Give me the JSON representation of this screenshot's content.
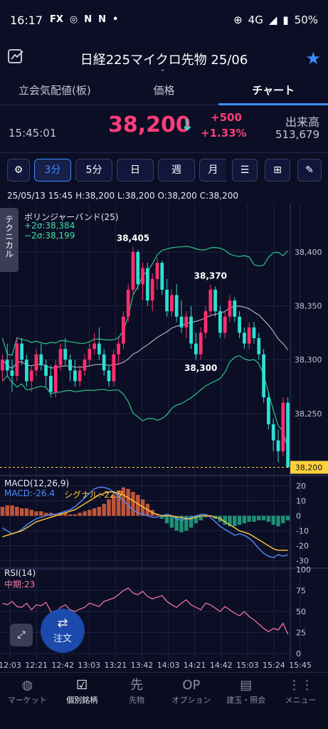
{
  "status_bar": {
    "time": "16:17",
    "icons": [
      "FX",
      "instagram-icon",
      "N",
      "N",
      "•"
    ],
    "network": "4G",
    "battery": "50%"
  },
  "header": {
    "title": "日経225マイクロ先物 25/06",
    "chevron": "⌄"
  },
  "tabs": [
    "立会気配値(板)",
    "価格",
    "チャート"
  ],
  "quote": {
    "time": "15:45:01",
    "price": "38,200",
    "change": "+500",
    "change_pct": "+1.33%",
    "volume_label": "出来高",
    "volume": "513,679"
  },
  "toolbar": {
    "periods": [
      "3分",
      "5分",
      "日",
      "週",
      "月"
    ],
    "selected": "3分"
  },
  "ohlc": "25/05/13 15:45  H:38,200  L:38,200  O:38,200  C:38,200",
  "bollinger": {
    "title": "ボリンジャーバンド(25)",
    "upper": "+2σ:38,384",
    "lower": "−2σ:38,199"
  },
  "tech_tab": "テクニカル",
  "annotations": {
    "high1": "38,405",
    "high2": "38,370",
    "low1": "38,300"
  },
  "price_axis": [
    "38,400",
    "38,350",
    "38,300",
    "38,250"
  ],
  "last_price_tag": "38,200",
  "macd": {
    "title": "MACD(12,26,9)",
    "macd_label": "MACD:-26.4",
    "signal_label": "シグナル:-22.7",
    "axis": [
      "20",
      "10",
      "0",
      "-10",
      "-20",
      "-30"
    ]
  },
  "rsi": {
    "title": "RSI(14)",
    "mid_label": "中期:23",
    "axis": [
      "100",
      "75",
      "50",
      "25",
      "0"
    ]
  },
  "time_axis": [
    "12:03",
    "12:21",
    "12:42",
    "13:03",
    "13:21",
    "13:42",
    "14:03",
    "14:21",
    "14:42",
    "15:03",
    "15:24",
    "15:45"
  ],
  "fab_label": "注文",
  "bottom_nav": [
    {
      "label": "マーケット",
      "icon": "globe-icon"
    },
    {
      "label": "個別銘柄",
      "icon": "checkbox-icon"
    },
    {
      "label": "先物",
      "icon": "futures-icon"
    },
    {
      "label": "オプション",
      "icon": "options-icon"
    },
    {
      "label": "建玉・照会",
      "icon": "document-icon"
    },
    {
      "label": "メニュー",
      "icon": "grid-icon"
    }
  ],
  "chart_data": {
    "type": "candlestick",
    "price_range": [
      38195,
      38445
    ],
    "macd_range": [
      -34,
      25
    ],
    "rsi_range": [
      0,
      100
    ],
    "candles": [
      [
        38290,
        38305,
        38280,
        38300
      ],
      [
        38300,
        38315,
        38285,
        38290
      ],
      [
        38290,
        38300,
        38270,
        38285
      ],
      [
        38285,
        38320,
        38280,
        38315
      ],
      [
        38315,
        38320,
        38295,
        38300
      ],
      [
        38300,
        38305,
        38275,
        38280
      ],
      [
        38280,
        38295,
        38270,
        38290
      ],
      [
        38290,
        38310,
        38285,
        38305
      ],
      [
        38305,
        38315,
        38290,
        38295
      ],
      [
        38295,
        38300,
        38275,
        38285
      ],
      [
        38285,
        38295,
        38265,
        38270
      ],
      [
        38270,
        38300,
        38265,
        38295
      ],
      [
        38295,
        38315,
        38290,
        38310
      ],
      [
        38310,
        38320,
        38295,
        38300
      ],
      [
        38300,
        38305,
        38280,
        38290
      ],
      [
        38290,
        38300,
        38275,
        38280
      ],
      [
        38280,
        38295,
        38275,
        38290
      ],
      [
        38290,
        38305,
        38285,
        38300
      ],
      [
        38300,
        38315,
        38295,
        38310
      ],
      [
        38310,
        38325,
        38305,
        38315
      ],
      [
        38315,
        38330,
        38300,
        38305
      ],
      [
        38305,
        38310,
        38285,
        38290
      ],
      [
        38290,
        38295,
        38275,
        38280
      ],
      [
        38280,
        38310,
        38275,
        38305
      ],
      [
        38305,
        38320,
        38295,
        38315
      ],
      [
        38315,
        38345,
        38310,
        38340
      ],
      [
        38340,
        38370,
        38335,
        38365
      ],
      [
        38365,
        38405,
        38360,
        38400
      ],
      [
        38400,
        38402,
        38365,
        38370
      ],
      [
        38370,
        38390,
        38355,
        38385
      ],
      [
        38385,
        38390,
        38350,
        38355
      ],
      [
        38355,
        38380,
        38345,
        38375
      ],
      [
        38375,
        38395,
        38365,
        38390
      ],
      [
        38390,
        38392,
        38360,
        38365
      ],
      [
        38365,
        38375,
        38340,
        38345
      ],
      [
        38345,
        38365,
        38340,
        38360
      ],
      [
        38360,
        38370,
        38335,
        38340
      ],
      [
        38340,
        38355,
        38325,
        38330
      ],
      [
        38330,
        38345,
        38320,
        38340
      ],
      [
        38340,
        38350,
        38310,
        38315
      ],
      [
        38315,
        38325,
        38300,
        38305
      ],
      [
        38305,
        38330,
        38300,
        38325
      ],
      [
        38325,
        38350,
        38320,
        38345
      ],
      [
        38345,
        38370,
        38340,
        38365
      ],
      [
        38365,
        38368,
        38340,
        38345
      ],
      [
        38345,
        38350,
        38320,
        38325
      ],
      [
        38325,
        38345,
        38320,
        38340
      ],
      [
        38340,
        38360,
        38335,
        38355
      ],
      [
        38355,
        38358,
        38335,
        38340
      ],
      [
        38340,
        38345,
        38320,
        38325
      ],
      [
        38325,
        38330,
        38310,
        38315
      ],
      [
        38315,
        38335,
        38310,
        38330
      ],
      [
        38330,
        38335,
        38315,
        38320
      ],
      [
        38320,
        38325,
        38300,
        38305
      ],
      [
        38305,
        38310,
        38260,
        38265
      ],
      [
        38265,
        38270,
        38235,
        38240
      ],
      [
        38240,
        38245,
        38215,
        38225
      ],
      [
        38225,
        38235,
        38205,
        38215
      ],
      [
        38215,
        38265,
        38210,
        38260
      ],
      [
        38260,
        38265,
        38200,
        38200
      ]
    ],
    "macd_hist": [
      6,
      7,
      7,
      6,
      5,
      5,
      4,
      3,
      3,
      2,
      2,
      1,
      2,
      2,
      1,
      1,
      2,
      3,
      4,
      5,
      6,
      8,
      11,
      14,
      17,
      19,
      18,
      16,
      14,
      11,
      8,
      4,
      1,
      -2,
      -5,
      -8,
      -10,
      -11,
      -10,
      -8,
      -5,
      -3,
      -1,
      0,
      -2,
      -4,
      -6,
      -7,
      -7,
      -6,
      -5,
      -4,
      -4,
      -3,
      -3,
      -4,
      -6,
      -7,
      -5,
      -3
    ],
    "macd_line": [
      -8,
      -10,
      -12,
      -11,
      -9,
      -6,
      -4,
      -2,
      -1,
      0,
      1,
      1,
      2,
      3,
      4,
      6,
      9,
      12,
      15,
      18,
      19,
      19,
      18,
      16,
      13,
      10,
      7,
      4,
      2,
      1,
      0,
      -1,
      -1,
      0,
      1,
      0,
      -2,
      -3,
      -2,
      -1,
      0,
      1,
      1,
      -1,
      -4,
      -7,
      -9,
      -11,
      -13,
      -12,
      -13,
      -15,
      -18,
      -22,
      -25,
      -27,
      -28,
      -26,
      -27,
      -26
    ],
    "signal_line": [
      -14,
      -13,
      -12,
      -11,
      -10,
      -8,
      -6,
      -4,
      -3,
      -2,
      -1,
      0,
      1,
      2,
      3,
      4,
      6,
      8,
      10,
      12,
      14,
      15,
      16,
      16,
      15,
      14,
      12,
      10,
      8,
      6,
      4,
      2,
      1,
      0,
      0,
      0,
      -1,
      -1,
      -2,
      -2,
      -1,
      0,
      0,
      0,
      -1,
      -2,
      -4,
      -6,
      -8,
      -10,
      -11,
      -12,
      -14,
      -16,
      -18,
      -20,
      -22,
      -23,
      -23,
      -23
    ],
    "rsi": [
      60,
      58,
      62,
      56,
      55,
      60,
      52,
      58,
      57,
      61,
      50,
      48,
      55,
      58,
      52,
      50,
      53,
      55,
      60,
      58,
      56,
      62,
      64,
      66,
      70,
      75,
      78,
      72,
      70,
      74,
      68,
      65,
      67,
      69,
      62,
      58,
      55,
      60,
      64,
      58,
      55,
      52,
      60,
      58,
      54,
      50,
      56,
      52,
      48,
      45,
      50,
      44,
      40,
      35,
      30,
      26,
      30,
      28,
      36,
      23
    ],
    "xlabels": [
      "12:03",
      "12:21",
      "12:42",
      "13:03",
      "13:21",
      "13:42",
      "14:03",
      "14:21",
      "14:42",
      "15:03",
      "15:24",
      "15:45"
    ]
  }
}
